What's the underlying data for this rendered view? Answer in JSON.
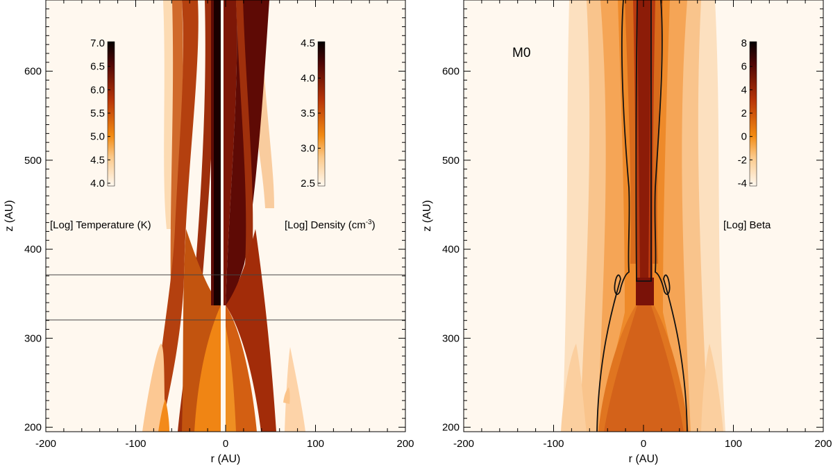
{
  "chart_data": [
    {
      "type": "heatmap",
      "panel": "left",
      "xlabel": "r (AU)",
      "ylabel": "z (AU)",
      "xlim": [
        -200,
        200
      ],
      "ylim": [
        195,
        680
      ],
      "xticks": [
        -200,
        -100,
        0,
        100,
        200
      ],
      "yticks": [
        200,
        300,
        400,
        500,
        600
      ],
      "hlines": [
        325,
        375
      ],
      "colorbars": [
        {
          "side": "left half (r < 0)",
          "label": "[Log] Temperature (K)",
          "ticks": [
            "4.0",
            "4.5",
            "5.0",
            "5.5",
            "6.0",
            "6.5",
            "7.0"
          ],
          "range": [
            4.0,
            7.0
          ]
        },
        {
          "side": "right half (r > 0)",
          "label_main": "[Log] Density (cm",
          "label_sup": "-3",
          "label_end": ")",
          "ticks": [
            "2.5",
            "3.0",
            "3.5",
            "4.0",
            "4.5"
          ],
          "range": [
            2.5,
            4.5
          ]
        }
      ]
    },
    {
      "type": "heatmap",
      "panel": "right",
      "model_label": "M0",
      "xlabel": "r (AU)",
      "ylabel": "z (AU)",
      "xlim": [
        -200,
        200
      ],
      "ylim": [
        195,
        680
      ],
      "xticks": [
        -200,
        -100,
        0,
        100,
        200
      ],
      "yticks": [
        200,
        300,
        400,
        500,
        600
      ],
      "colorbars": [
        {
          "label": "[Log] Beta",
          "ticks": [
            "-4",
            "-2",
            "0",
            "2",
            "4",
            "6",
            "8"
          ],
          "range": [
            -4,
            8
          ]
        }
      ]
    }
  ]
}
